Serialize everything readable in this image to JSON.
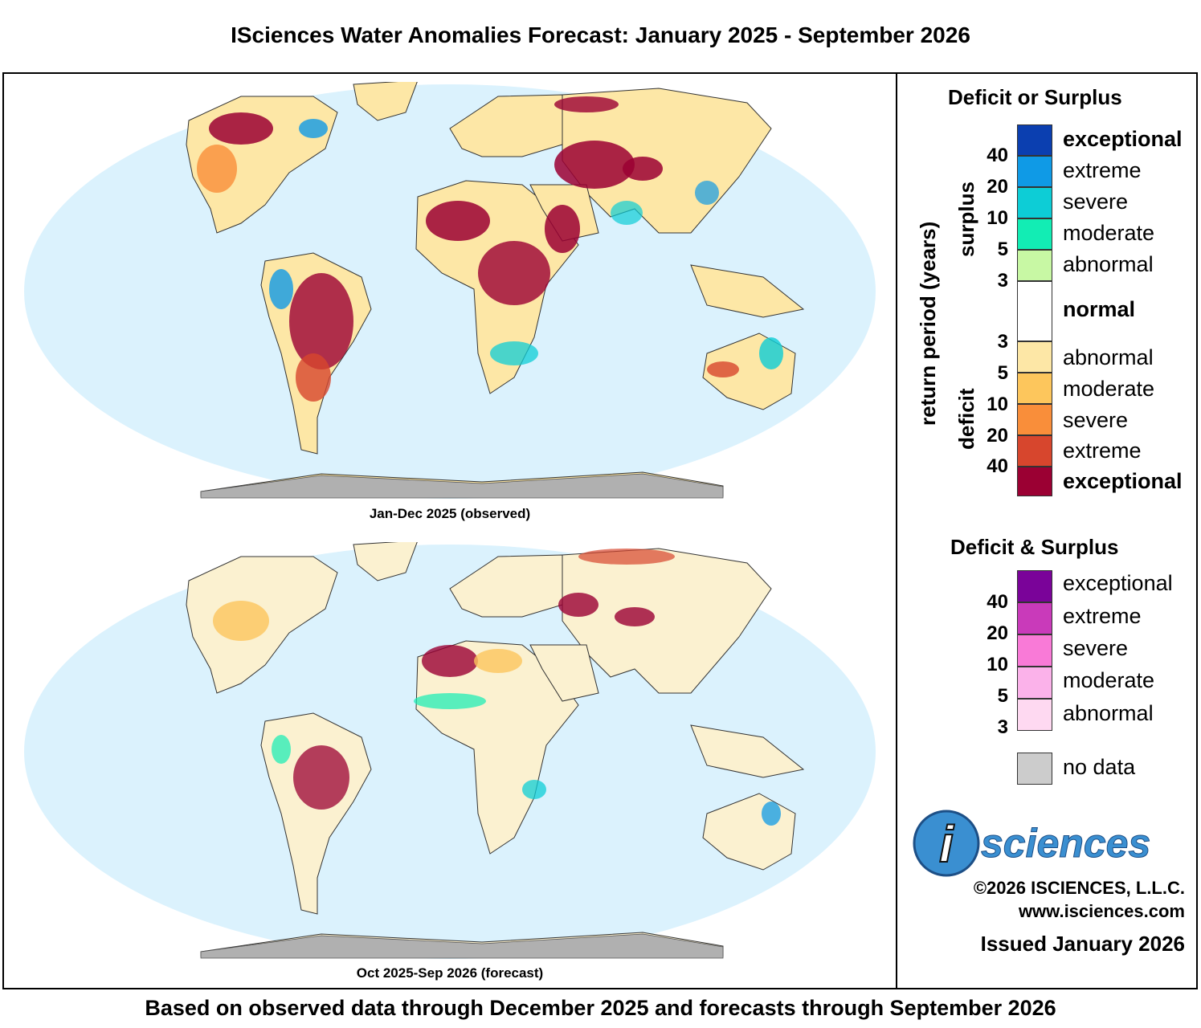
{
  "title": "ISciences Water Anomalies Forecast: January 2025 - September 2026",
  "maps": [
    {
      "caption": "Jan-Dec 2025 (observed)"
    },
    {
      "caption": "Oct 2025-Sep 2026 (forecast)"
    }
  ],
  "footer": "Based on observed data through December 2025 and forecasts through September 2026",
  "legend": {
    "axis_label": "return period (years)",
    "group_surplus": "surplus",
    "group_deficit": "deficit",
    "deficit_or_surplus": {
      "title": "Deficit or Surplus",
      "surplus": [
        {
          "label": "exceptional",
          "color": "#0b3fb0"
        },
        {
          "label": "extreme",
          "color": "#0f9ae6"
        },
        {
          "label": "severe",
          "color": "#0dcdd6"
        },
        {
          "label": "moderate",
          "color": "#12edb4"
        },
        {
          "label": "abnormal",
          "color": "#c8f8a4"
        }
      ],
      "normal": {
        "label": "normal",
        "color": "#ffffff"
      },
      "deficit": [
        {
          "label": "abnormal",
          "color": "#fde7a6"
        },
        {
          "label": "moderate",
          "color": "#fdc65c"
        },
        {
          "label": "severe",
          "color": "#f98e3a"
        },
        {
          "label": "extreme",
          "color": "#d7462d"
        },
        {
          "label": "exceptional",
          "color": "#9b0033"
        }
      ],
      "surplus_ticks": [
        "40",
        "20",
        "10",
        "5",
        "3"
      ],
      "deficit_ticks": [
        "3",
        "5",
        "10",
        "20",
        "40"
      ]
    },
    "deficit_and_surplus": {
      "title": "Deficit & Surplus",
      "items": [
        {
          "label": "exceptional",
          "color": "#7a0399"
        },
        {
          "label": "extreme",
          "color": "#c93aba"
        },
        {
          "label": "severe",
          "color": "#f97ad7"
        },
        {
          "label": "moderate",
          "color": "#fbb2ea"
        },
        {
          "label": "abnormal",
          "color": "#fed9f1"
        }
      ],
      "ticks": [
        "40",
        "20",
        "10",
        "5",
        "3"
      ]
    },
    "no_data": {
      "label": "no data",
      "color": "#cccccc"
    }
  },
  "logo": {
    "i": "i",
    "text": "sciences"
  },
  "copyright": "©2026 ISCIENCES, L.L.C.",
  "website": "www.isciences.com",
  "issued": "Issued January 2026"
}
